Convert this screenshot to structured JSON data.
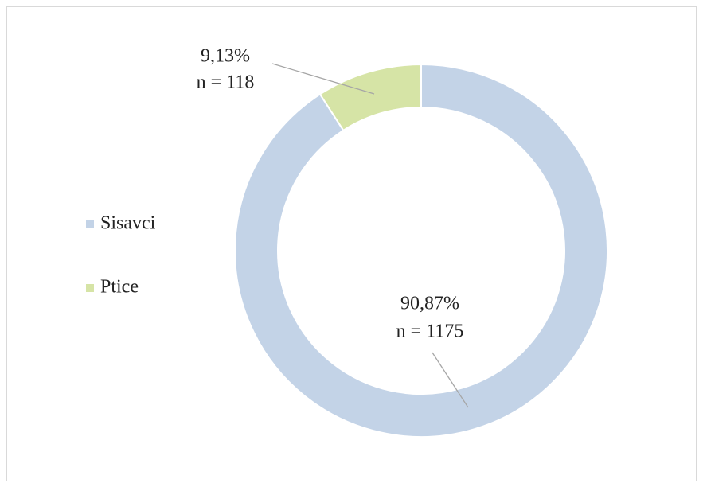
{
  "chart_data": {
    "type": "donut",
    "categories": [
      "Sisavci",
      "Ptice"
    ],
    "values": [
      90.87,
      9.13
    ],
    "value_labels": [
      "90,87%",
      "9,13%"
    ],
    "counts": [
      1175,
      118
    ],
    "count_labels": [
      "n = 1175",
      "n = 118"
    ],
    "colors": [
      "#c3d3e7",
      "#d6e4a6"
    ],
    "legend": "left"
  }
}
